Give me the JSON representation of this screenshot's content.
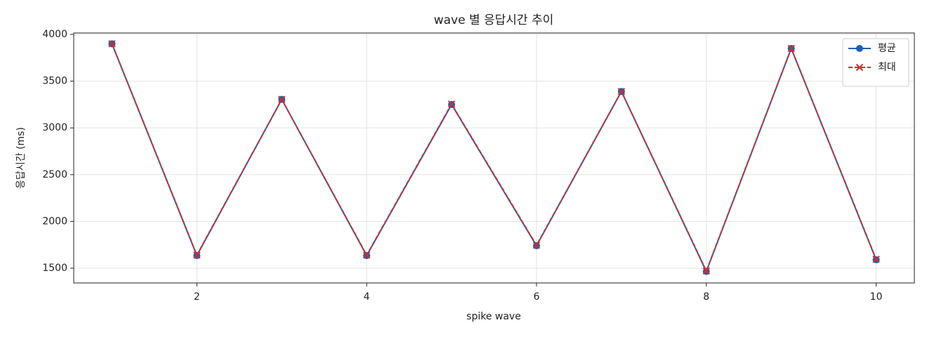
{
  "chart_data": {
    "type": "line",
    "title": "wave 별 응답시간 추이",
    "xlabel": "spike wave",
    "ylabel": "응답시간 (ms)",
    "x": [
      1,
      2,
      3,
      4,
      5,
      6,
      7,
      8,
      9,
      10
    ],
    "series": [
      {
        "name": "평균",
        "color": "#1f5fb4",
        "marker": "o",
        "linestyle": "solid",
        "values": [
          3900,
          1635,
          3305,
          1635,
          3250,
          1740,
          3390,
          1465,
          3850,
          1590
        ]
      },
      {
        "name": "최대",
        "color": "#c8312f",
        "marker": "x",
        "linestyle": "dashed",
        "values": [
          3900,
          1640,
          3305,
          1640,
          3255,
          1745,
          3390,
          1470,
          3850,
          1595
        ]
      }
    ],
    "xlim": [
      0.55,
      10.45
    ],
    "ylim": [
      1342,
      4015
    ],
    "xticks": [
      2,
      4,
      6,
      8,
      10
    ],
    "yticks": [
      1500,
      2000,
      2500,
      3000,
      3500,
      4000
    ],
    "grid": true,
    "legend": "upper right"
  }
}
